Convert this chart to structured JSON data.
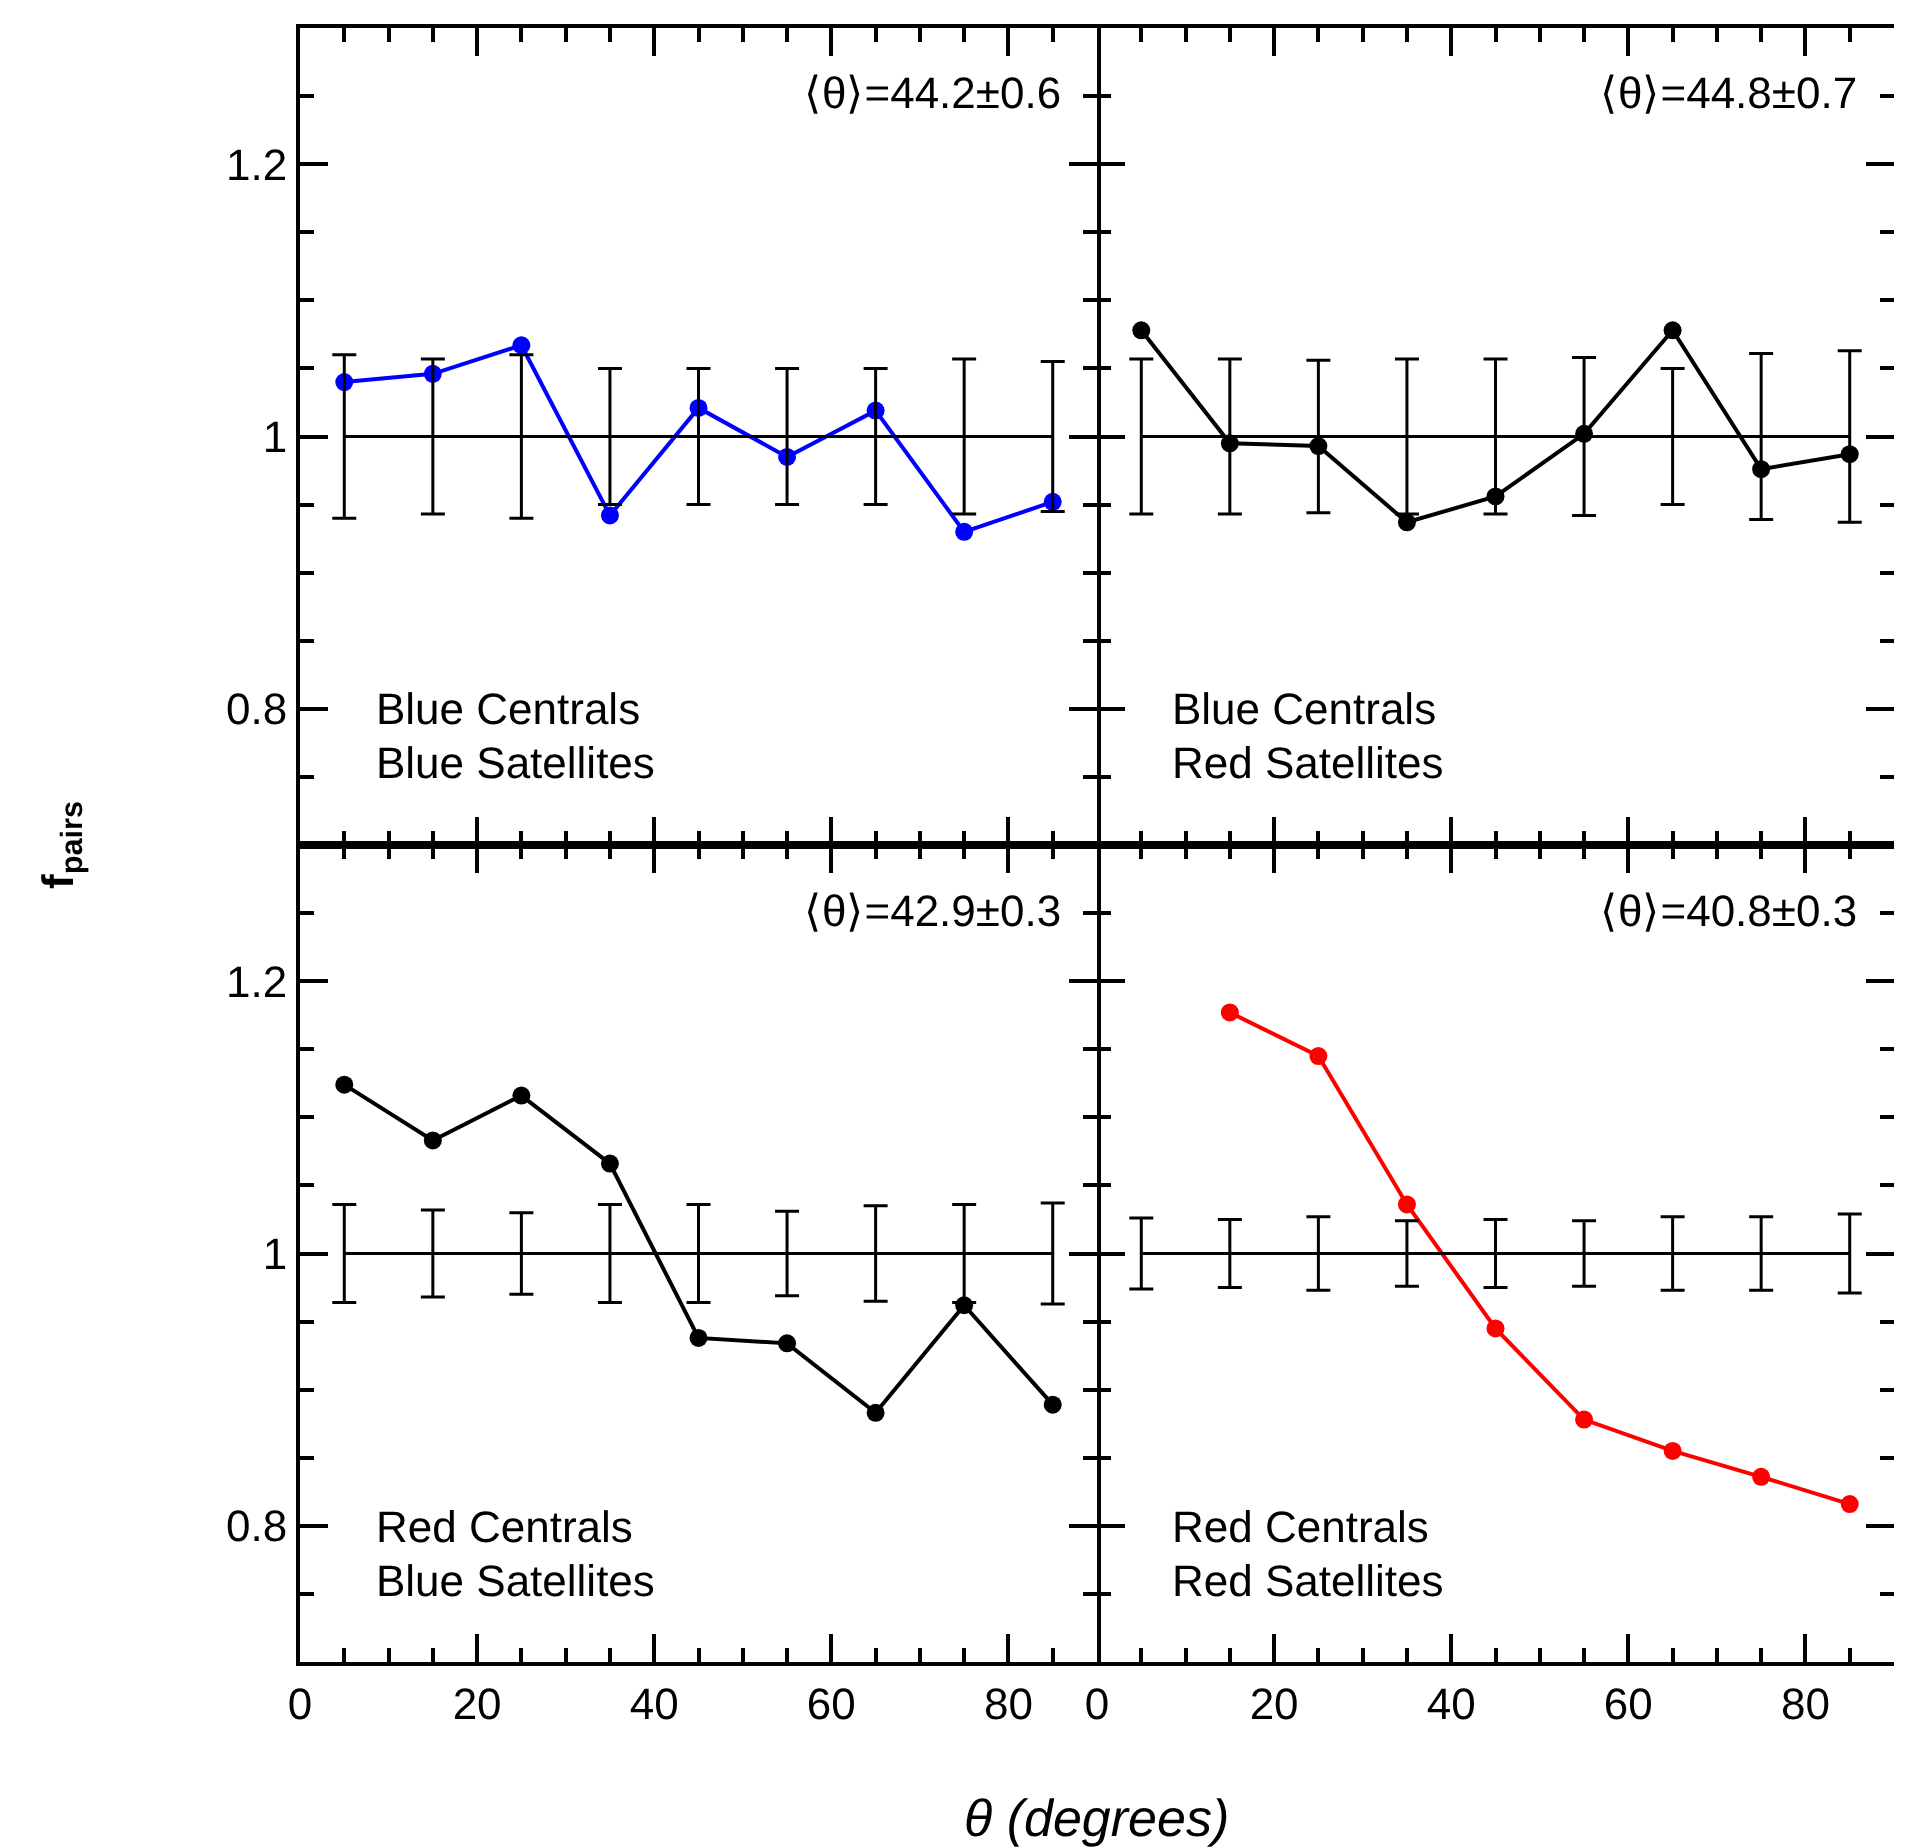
{
  "chart_data": [
    {
      "type": "line",
      "x": [
        5,
        15,
        25,
        35,
        45,
        55,
        65,
        75,
        85
      ],
      "xlim": [
        0,
        90
      ],
      "ylim": [
        0.7,
        1.3
      ],
      "xticks": [
        0,
        20,
        40,
        60,
        80
      ],
      "yticks": [
        0.8,
        1,
        1.2
      ],
      "tick_labels": "y",
      "marker": "circle",
      "ylabel": "f$_{pairs}$",
      "annotations": [
        "⟨θ⟩=44.2±0.6",
        "Blue Centrals",
        "Blue Satellites"
      ],
      "series": [
        {
          "color": "#0000ff",
          "values": [
            1.04,
            1.046,
            1.067,
            0.942,
            1.021,
            0.985,
            1.019,
            0.93,
            0.952
          ]
        },
        {
          "type": "line",
          "marker": "none",
          "color": "#000000",
          "values": [
            1,
            1,
            1,
            1,
            1,
            1,
            1,
            1,
            1
          ],
          "errors": [
            0.06,
            0.057,
            0.06,
            0.05,
            0.05,
            0.05,
            0.05,
            0.057,
            0.055
          ]
        }
      ]
    },
    {
      "type": "line",
      "x": [
        5,
        15,
        25,
        35,
        45,
        55,
        65,
        75,
        85
      ],
      "xlim": [
        0,
        90
      ],
      "ylim": [
        0.7,
        1.3
      ],
      "xticks": [
        0,
        20,
        40,
        60,
        80
      ],
      "yticks": [
        0.8,
        1,
        1.2
      ],
      "tick_labels": false,
      "marker": "circle",
      "annotations": [
        "⟨θ⟩=44.8±0.7",
        "Blue Centrals",
        "Red Satellites"
      ],
      "series": [
        {
          "color": "#000000",
          "values": [
            1.078,
            0.995,
            0.993,
            0.937,
            0.956,
            1.002,
            1.078,
            0.976,
            0.987
          ]
        },
        {
          "type": "line",
          "marker": "none",
          "color": "#000000",
          "values": [
            1,
            1,
            1,
            1,
            1,
            1,
            1,
            1,
            1
          ],
          "errors": [
            0.057,
            0.057,
            0.056,
            0.057,
            0.057,
            0.058,
            0.05,
            0.061,
            0.063
          ]
        }
      ]
    },
    {
      "type": "line",
      "x": [
        5,
        15,
        25,
        35,
        45,
        55,
        65,
        75,
        85
      ],
      "xlim": [
        0,
        90
      ],
      "ylim": [
        0.7,
        1.3
      ],
      "xticks": [
        0,
        20,
        40,
        60,
        80
      ],
      "yticks": [
        0.8,
        1,
        1.2
      ],
      "marker": "circle",
      "xlabel": "θ (degrees)",
      "annotations": [
        "⟨θ⟩=42.9±0.3",
        "Red Centrals",
        "Blue Satellites"
      ],
      "series": [
        {
          "color": "#000000",
          "values": [
            1.124,
            1.083,
            1.116,
            1.066,
            0.938,
            0.934,
            0.883,
            0.962,
            0.889
          ]
        },
        {
          "type": "line",
          "marker": "none",
          "color": "#000000",
          "values": [
            1,
            1,
            1,
            1,
            1,
            1,
            1,
            1,
            1
          ],
          "errors": [
            0.036,
            0.032,
            0.03,
            0.036,
            0.036,
            0.031,
            0.035,
            0.036,
            0.037
          ]
        }
      ]
    },
    {
      "type": "line",
      "x": [
        5,
        15,
        25,
        35,
        45,
        55,
        65,
        75,
        85
      ],
      "xlim": [
        0,
        90
      ],
      "ylim": [
        0.7,
        1.3
      ],
      "xticks": [
        0,
        20,
        40,
        60,
        80
      ],
      "yticks": [
        0.8,
        1,
        1.2
      ],
      "tick_labels": "x",
      "marker": "circle",
      "annotations": [
        "⟨θ⟩=40.8±0.3",
        "Red Centrals",
        "Red Satellites"
      ],
      "series": [
        {
          "color": "#ff0000",
          "values": [
            null,
            1.177,
            1.145,
            1.036,
            0.945,
            0.878,
            0.855,
            0.836,
            0.816
          ]
        },
        {
          "type": "line",
          "marker": "none",
          "color": "#000000",
          "values": [
            1,
            1,
            1,
            1,
            1,
            1,
            1,
            1,
            1
          ],
          "errors": [
            0.026,
            0.025,
            0.027,
            0.024,
            0.025,
            0.024,
            0.027,
            0.027,
            0.029
          ]
        }
      ]
    }
  ]
}
